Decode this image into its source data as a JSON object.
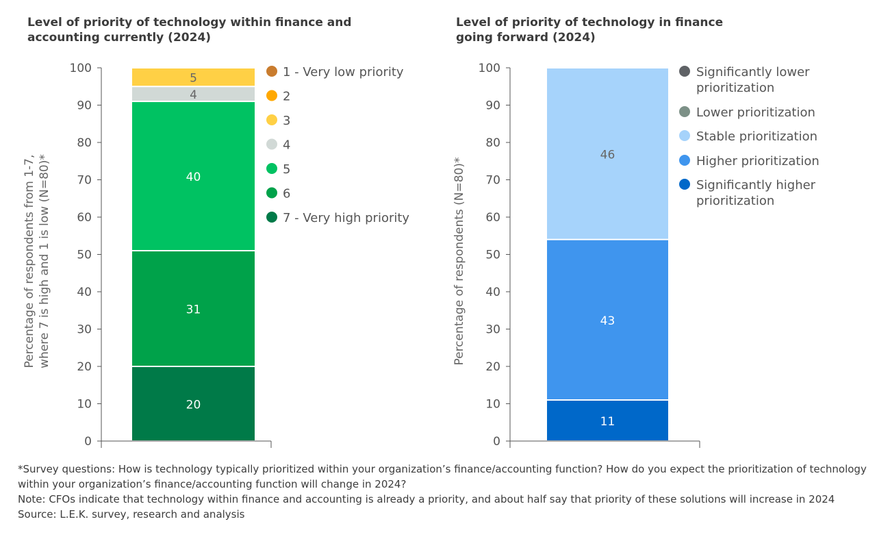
{
  "chart_data": [
    {
      "type": "bar",
      "stacked": true,
      "title": "Level of priority of technology within finance and accounting currently (2024)",
      "ylabel": "Percentage of respondents from 1-7, where 7 is high and 1 is low (N=80)*",
      "ylim": [
        0,
        100
      ],
      "yticks": [
        0,
        10,
        20,
        30,
        40,
        50,
        60,
        70,
        80,
        90,
        100
      ],
      "grid": false,
      "legend_position": "right",
      "series": [
        {
          "name": "7 - Very high priority",
          "value": 20,
          "color": "#007a48"
        },
        {
          "name": "6",
          "value": 31,
          "color": "#00a24a"
        },
        {
          "name": "5",
          "value": 40,
          "color": "#00c262"
        },
        {
          "name": "4",
          "value": 4,
          "color": "#d1d9d6"
        },
        {
          "name": "3",
          "value": 5,
          "color": "#ffd045"
        },
        {
          "name": "2",
          "value": 0,
          "color": "#ffa800"
        },
        {
          "name": "1 - Very low priority",
          "value": 0,
          "color": "#c97c2e"
        }
      ]
    },
    {
      "type": "bar",
      "stacked": true,
      "title": "Level of priority of technology in finance going forward (2024)",
      "ylabel": "Percentage of respondents (N=80)*",
      "ylim": [
        0,
        100
      ],
      "yticks": [
        0,
        10,
        20,
        30,
        40,
        50,
        60,
        70,
        80,
        90,
        100
      ],
      "grid": false,
      "legend_position": "right",
      "series": [
        {
          "name": "Significantly higher prioritization",
          "value": 11,
          "color": "#0068c9"
        },
        {
          "name": "Higher prioritization",
          "value": 43,
          "color": "#3f95ee"
        },
        {
          "name": "Stable prioritization",
          "value": 46,
          "color": "#a6d3fb"
        },
        {
          "name": "Lower prioritization",
          "value": 0,
          "color": "#7c9087"
        },
        {
          "name": "Significantly lower prioritization",
          "value": 0,
          "color": "#5f6266"
        }
      ]
    }
  ],
  "footnotes": [
    "*Survey questions: How is technology typically prioritized within your organization’s finance/accounting function? How do you expect the prioritization of technology within your organization’s finance/accounting function will change in 2024?",
    "Note: CFOs indicate that technology within finance and accounting is already a priority, and about half say that priority of these solutions will increase in 2024",
    "Source: L.E.K. survey, research and analysis"
  ]
}
